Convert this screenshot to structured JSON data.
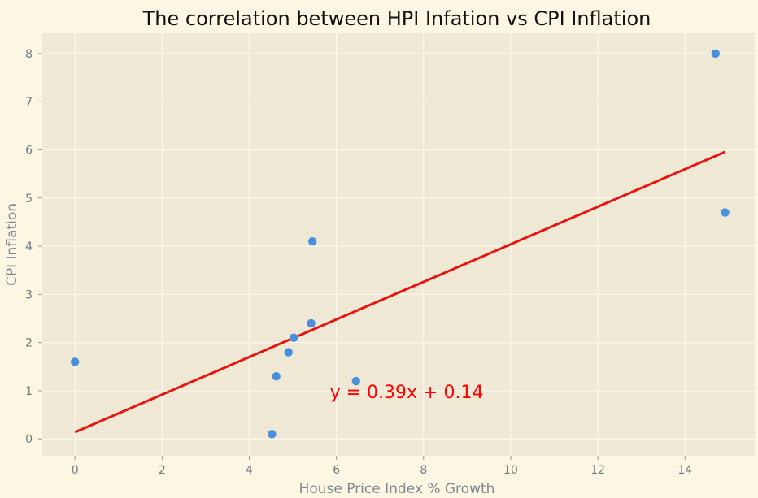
{
  "chart_data": {
    "type": "scatter",
    "title": "The correlation between HPI Infation vs CPI Inflation",
    "xlabel": "House Price Index % Growth",
    "ylabel": "CPI Inflation",
    "xlim": [
      -0.75,
      15.6
    ],
    "ylim": [
      -0.35,
      8.42
    ],
    "xticks": [
      0,
      2,
      4,
      6,
      8,
      10,
      12,
      14
    ],
    "yticks": [
      0,
      1,
      2,
      3,
      4,
      5,
      6,
      7,
      8
    ],
    "grid": true,
    "series": [
      {
        "x": [
          0.0,
          4.52,
          4.62,
          4.9,
          5.02,
          5.42,
          5.45,
          6.45,
          14.7,
          14.92
        ],
        "y": [
          1.6,
          0.1,
          1.3,
          1.8,
          2.1,
          2.4,
          4.1,
          1.2,
          8.0,
          4.7
        ]
      }
    ],
    "trendline": {
      "slope": 0.39,
      "intercept": 0.14,
      "x_range": [
        0.0,
        14.92
      ]
    },
    "annotations": [
      {
        "text": "y = 0.39x + 0.14",
        "x": 5.85,
        "y": 0.85
      }
    ]
  },
  "colors": {
    "figure_background": "#fdf6e3",
    "plot_background": "#eee8d5",
    "grid": "#fbf7ec",
    "point": "#4a8fde",
    "trendline": "#e8140f",
    "annotation": "#ff0000"
  }
}
